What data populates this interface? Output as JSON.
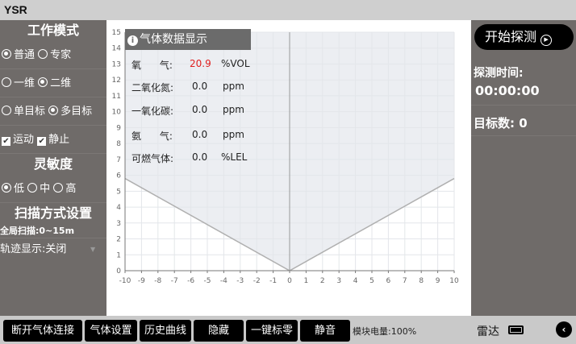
{
  "app": {
    "title": "YSR"
  },
  "left": {
    "work_mode_title": "工作模式",
    "mode": {
      "options": [
        "普通",
        "专家"
      ],
      "selected": 0
    },
    "dimension": {
      "options": [
        "一维",
        "二维"
      ],
      "selected": 1
    },
    "target": {
      "options": [
        "单目标",
        "多目标"
      ],
      "selected": 1
    },
    "filters": [
      {
        "label": "运动",
        "checked": true
      },
      {
        "label": "静止",
        "checked": true
      }
    ],
    "sensitivity_title": "灵敏度",
    "sensitivity": {
      "options": [
        "低",
        "中",
        "高"
      ],
      "selected": 0
    },
    "scan_title": "扫描方式设置",
    "scan_value": "全局扫描:0~15m",
    "trail_label": "轨迹显示:关闭"
  },
  "gas_panel": {
    "title": "气体数据显示",
    "rows": [
      {
        "name": "氧      气:",
        "value": "20.9",
        "unit": "%VOL",
        "highlight": true
      },
      {
        "name": "二氧化氮:",
        "value": "0.0",
        "unit": "ppm"
      },
      {
        "name": "一氧化碳:",
        "value": "0.0",
        "unit": "ppm"
      },
      {
        "name": "氨      气:",
        "value": "0.0",
        "unit": "ppm"
      },
      {
        "name": "可燃气体:",
        "value": "0.0",
        "unit": "%LEL"
      }
    ],
    "highlight_color": "#e02020"
  },
  "chart_data": {
    "type": "area",
    "xlim": [
      -10,
      10
    ],
    "ylim": [
      0,
      15
    ],
    "x_ticks": [
      "-10",
      "-9",
      "-8",
      "-7",
      "-6",
      "-5",
      "-4",
      "-3",
      "-2",
      "-1",
      "0",
      "1",
      "2",
      "3",
      "4",
      "5",
      "6",
      "7",
      "8",
      "9",
      "10"
    ],
    "y_ticks": [
      "0",
      "1",
      "2",
      "3",
      "4",
      "5",
      "6",
      "7",
      "8",
      "9",
      "10",
      "11",
      "12",
      "13",
      "14",
      "15"
    ],
    "grid": true,
    "boundary": [
      {
        "x": -10,
        "y": 5.8
      },
      {
        "x": 0,
        "y": 0
      },
      {
        "x": 10,
        "y": 5.8
      }
    ],
    "fill_color": "#eceef2"
  },
  "right": {
    "start_label": "开始探测",
    "time_label": "探测时间:",
    "time_value": "00:00:00",
    "targets_label": "目标数: 0"
  },
  "bottom": {
    "buttons": [
      "断开气体连接",
      "气体设置",
      "历史曲线",
      "隐藏",
      "一键标零",
      "静音"
    ],
    "battery_text": "模块电量:100%",
    "radar_label": "雷达"
  }
}
